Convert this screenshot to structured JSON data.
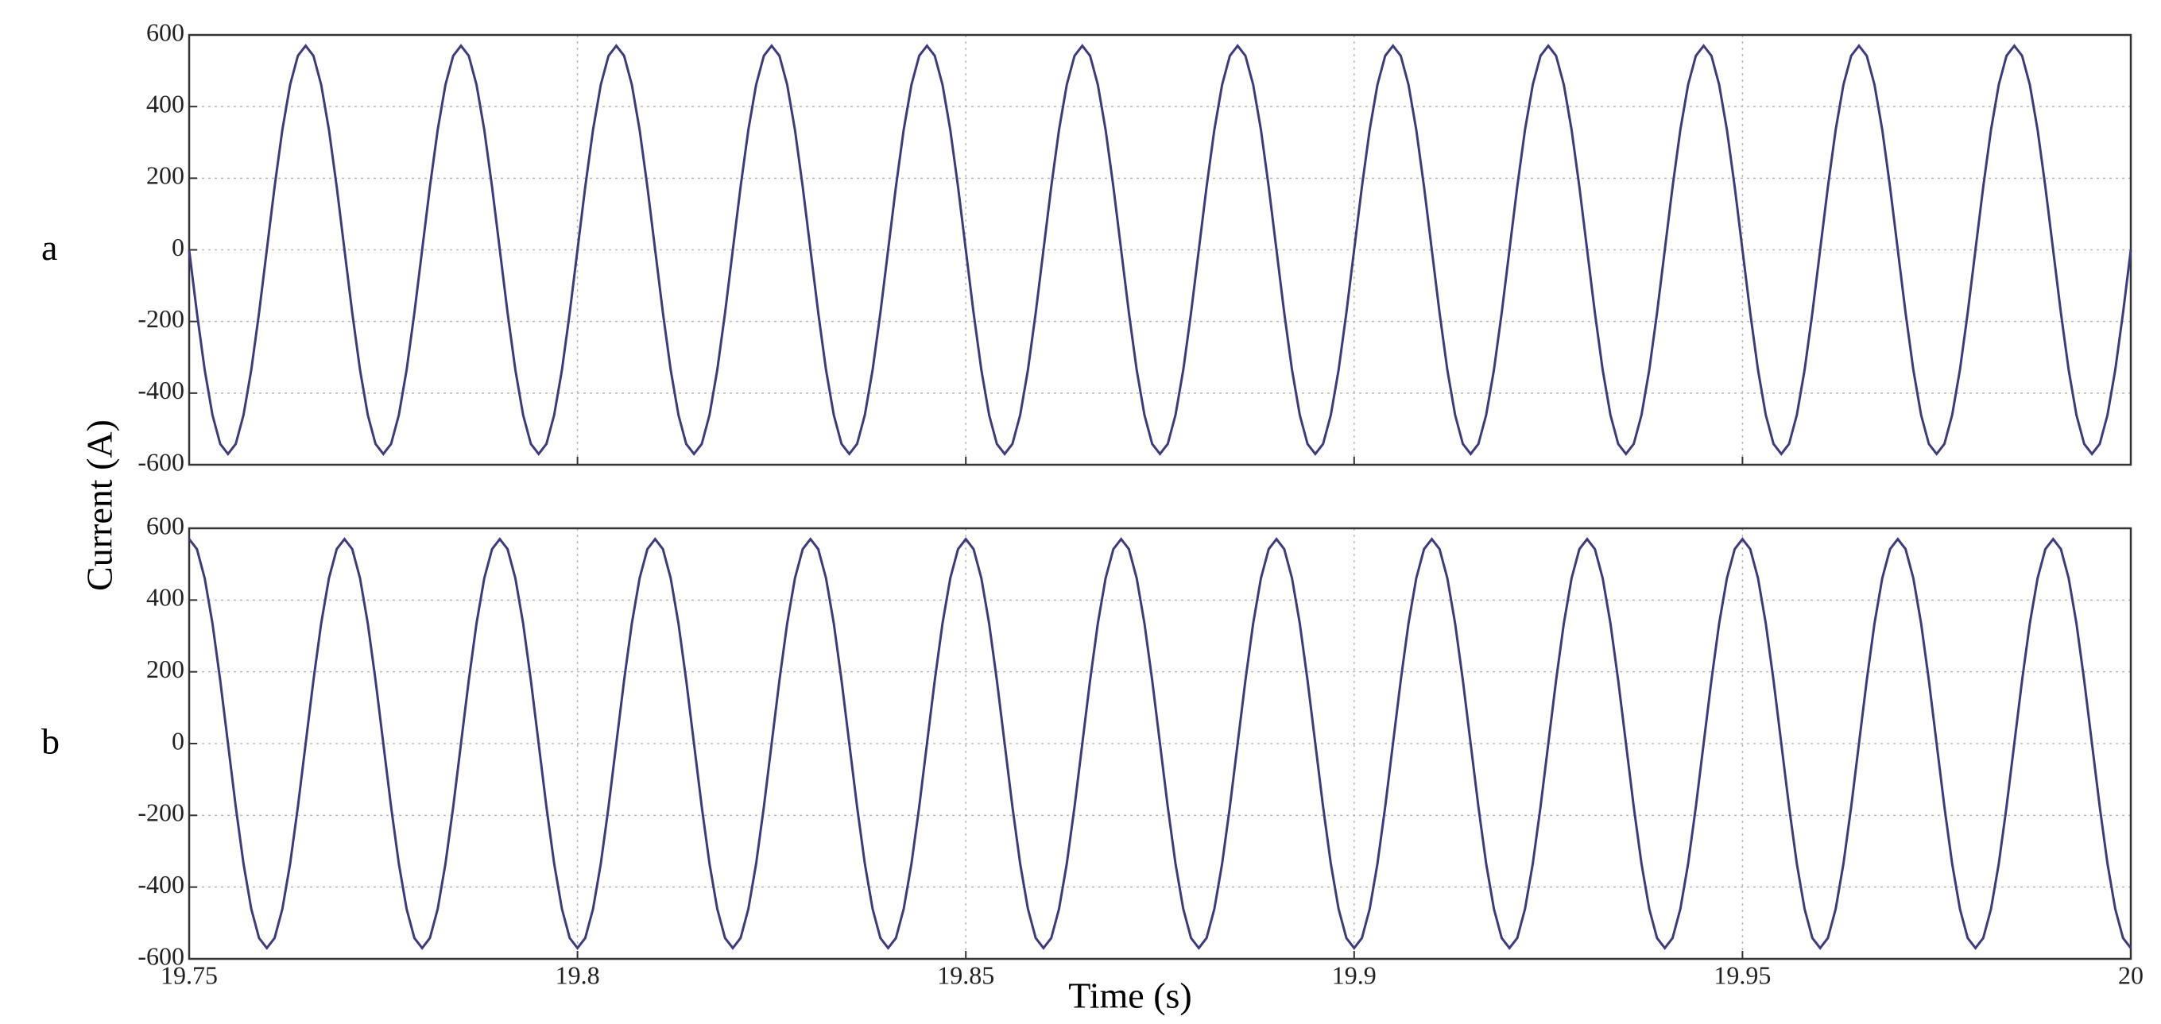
{
  "ylabel": "Current (A)",
  "xlabel": "Time (s)",
  "chart_data": [
    {
      "type": "line",
      "panel": "a",
      "color": "#3b3b7d",
      "grid": true,
      "xlim": [
        19.75,
        20
      ],
      "xticks": [
        19.75,
        19.8,
        19.85,
        19.9,
        19.95,
        20
      ],
      "ylim": [
        -600,
        600
      ],
      "yticks": [
        -600,
        -400,
        -200,
        0,
        200,
        400,
        600
      ],
      "x": [
        19.75,
        19.751,
        19.752,
        19.753,
        19.754,
        19.755,
        19.756,
        19.757,
        19.758,
        19.759,
        19.76,
        19.761,
        19.762,
        19.763,
        19.764,
        19.765,
        19.766,
        19.767,
        19.768,
        19.769,
        19.77,
        19.771,
        19.772,
        19.773,
        19.774,
        19.775,
        19.776,
        19.777,
        19.778,
        19.779,
        19.78,
        19.781,
        19.782,
        19.783,
        19.784,
        19.785,
        19.786,
        19.787,
        19.788,
        19.789,
        19.79,
        19.791,
        19.792,
        19.793,
        19.794,
        19.795,
        19.796,
        19.797,
        19.798,
        19.799,
        19.8,
        19.801,
        19.802,
        19.803,
        19.804,
        19.805,
        19.806,
        19.807,
        19.808,
        19.809,
        19.81,
        19.811,
        19.812,
        19.813,
        19.814,
        19.815,
        19.816,
        19.817,
        19.818,
        19.819,
        19.82,
        19.821,
        19.822,
        19.823,
        19.824,
        19.825,
        19.826,
        19.827,
        19.828,
        19.829,
        19.83,
        19.831,
        19.832,
        19.833,
        19.834,
        19.835,
        19.836,
        19.837,
        19.838,
        19.839,
        19.84,
        19.841,
        19.842,
        19.843,
        19.844,
        19.845,
        19.846,
        19.847,
        19.848,
        19.849,
        19.85,
        19.851,
        19.852,
        19.853,
        19.854,
        19.855,
        19.856,
        19.857,
        19.858,
        19.859,
        19.86,
        19.861,
        19.862,
        19.863,
        19.864,
        19.865,
        19.866,
        19.867,
        19.868,
        19.869,
        19.87,
        19.871,
        19.872,
        19.873,
        19.874,
        19.875,
        19.876,
        19.877,
        19.878,
        19.879,
        19.88,
        19.881,
        19.882,
        19.883,
        19.884,
        19.885,
        19.886,
        19.887,
        19.888,
        19.889,
        19.89,
        19.891,
        19.892,
        19.893,
        19.894,
        19.895,
        19.896,
        19.897,
        19.898,
        19.899,
        19.9,
        19.901,
        19.902,
        19.903,
        19.904,
        19.905,
        19.906,
        19.907,
        19.908,
        19.909,
        19.91,
        19.911,
        19.912,
        19.913,
        19.914,
        19.915,
        19.916,
        19.917,
        19.918,
        19.919,
        19.92,
        19.921,
        19.922,
        19.923,
        19.924,
        19.925,
        19.926,
        19.927,
        19.928,
        19.929,
        19.93,
        19.931,
        19.932,
        19.933,
        19.934,
        19.935,
        19.936,
        19.937,
        19.938,
        19.939,
        19.94,
        19.941,
        19.942,
        19.943,
        19.944,
        19.945,
        19.946,
        19.947,
        19.948,
        19.949,
        19.95,
        19.951,
        19.952,
        19.953,
        19.954,
        19.955,
        19.956,
        19.957,
        19.958,
        19.959,
        19.96,
        19.961,
        19.962,
        19.963,
        19.964,
        19.965,
        19.966,
        19.967,
        19.968,
        19.969,
        19.97,
        19.971,
        19.972,
        19.973,
        19.974,
        19.975,
        19.976,
        19.977,
        19.978,
        19.979,
        19.98,
        19.981,
        19.982,
        19.983,
        19.984,
        19.985,
        19.986,
        19.987,
        19.988,
        19.989,
        19.99,
        19.991,
        19.992,
        19.993,
        19.994,
        19.995,
        19.996,
        19.997,
        19.998,
        19.999,
        20
      ],
      "values": [
        0,
        -176,
        -335,
        -461,
        -542,
        -570,
        -542,
        -461,
        -335,
        -176,
        0,
        176,
        335,
        461,
        542,
        570,
        542,
        461,
        335,
        176,
        0,
        -176,
        -335,
        -461,
        -542,
        -570,
        -542,
        -461,
        -335,
        -176,
        0,
        176,
        335,
        461,
        542,
        570,
        542,
        461,
        335,
        176,
        0,
        -176,
        -335,
        -461,
        -542,
        -570,
        -542,
        -461,
        -335,
        -176,
        0,
        176,
        335,
        461,
        542,
        570,
        542,
        461,
        335,
        176,
        0,
        -176,
        -335,
        -461,
        -542,
        -570,
        -542,
        -461,
        -335,
        -176,
        0,
        176,
        335,
        461,
        542,
        570,
        542,
        461,
        335,
        176,
        0,
        -176,
        -335,
        -461,
        -542,
        -570,
        -542,
        -461,
        -335,
        -176,
        0,
        176,
        335,
        461,
        542,
        570,
        542,
        461,
        335,
        176,
        0,
        -176,
        -335,
        -461,
        -542,
        -570,
        -542,
        -461,
        -335,
        -176,
        0,
        176,
        335,
        461,
        542,
        570,
        542,
        461,
        335,
        176,
        0,
        -176,
        -335,
        -461,
        -542,
        -570,
        -542,
        -461,
        -335,
        -176,
        0,
        176,
        335,
        461,
        542,
        570,
        542,
        461,
        335,
        176,
        0,
        -176,
        -335,
        -461,
        -542,
        -570,
        -542,
        -461,
        -335,
        -176,
        0,
        176,
        335,
        461,
        542,
        570,
        542,
        461,
        335,
        176,
        0,
        -176,
        -335,
        -461,
        -542,
        -570,
        -542,
        -461,
        -335,
        -176,
        0,
        176,
        335,
        461,
        542,
        570,
        542,
        461,
        335,
        176,
        0,
        -176,
        -335,
        -461,
        -542,
        -570,
        -542,
        -461,
        -335,
        -176,
        0,
        176,
        335,
        461,
        542,
        570,
        542,
        461,
        335,
        176,
        0,
        -176,
        -335,
        -461,
        -542,
        -570,
        -542,
        -461,
        -335,
        -176,
        0,
        176,
        335,
        461,
        542,
        570,
        542,
        461,
        335,
        176,
        0,
        -176,
        -335,
        -461,
        -542,
        -570,
        -542,
        -461,
        -335,
        -176,
        0,
        176,
        335,
        461,
        542,
        570,
        542,
        461,
        335,
        176,
        0,
        -176,
        -335,
        -461,
        -542,
        -570,
        -542,
        -461,
        -335,
        -176,
        0
      ]
    },
    {
      "type": "line",
      "panel": "b",
      "color": "#3b3b7d",
      "grid": true,
      "xlim": [
        19.75,
        20
      ],
      "xticks": [
        19.75,
        19.8,
        19.85,
        19.9,
        19.95,
        20
      ],
      "ylim": [
        -600,
        600
      ],
      "yticks": [
        -600,
        -400,
        -200,
        0,
        200,
        400,
        600
      ],
      "x": [
        19.75,
        19.751,
        19.752,
        19.753,
        19.754,
        19.755,
        19.756,
        19.757,
        19.758,
        19.759,
        19.76,
        19.761,
        19.762,
        19.763,
        19.764,
        19.765,
        19.766,
        19.767,
        19.768,
        19.769,
        19.77,
        19.771,
        19.772,
        19.773,
        19.774,
        19.775,
        19.776,
        19.777,
        19.778,
        19.779,
        19.78,
        19.781,
        19.782,
        19.783,
        19.784,
        19.785,
        19.786,
        19.787,
        19.788,
        19.789,
        19.79,
        19.791,
        19.792,
        19.793,
        19.794,
        19.795,
        19.796,
        19.797,
        19.798,
        19.799,
        19.8,
        19.801,
        19.802,
        19.803,
        19.804,
        19.805,
        19.806,
        19.807,
        19.808,
        19.809,
        19.81,
        19.811,
        19.812,
        19.813,
        19.814,
        19.815,
        19.816,
        19.817,
        19.818,
        19.819,
        19.82,
        19.821,
        19.822,
        19.823,
        19.824,
        19.825,
        19.826,
        19.827,
        19.828,
        19.829,
        19.83,
        19.831,
        19.832,
        19.833,
        19.834,
        19.835,
        19.836,
        19.837,
        19.838,
        19.839,
        19.84,
        19.841,
        19.842,
        19.843,
        19.844,
        19.845,
        19.846,
        19.847,
        19.848,
        19.849,
        19.85,
        19.851,
        19.852,
        19.853,
        19.854,
        19.855,
        19.856,
        19.857,
        19.858,
        19.859,
        19.86,
        19.861,
        19.862,
        19.863,
        19.864,
        19.865,
        19.866,
        19.867,
        19.868,
        19.869,
        19.87,
        19.871,
        19.872,
        19.873,
        19.874,
        19.875,
        19.876,
        19.877,
        19.878,
        19.879,
        19.88,
        19.881,
        19.882,
        19.883,
        19.884,
        19.885,
        19.886,
        19.887,
        19.888,
        19.889,
        19.89,
        19.891,
        19.892,
        19.893,
        19.894,
        19.895,
        19.896,
        19.897,
        19.898,
        19.899,
        19.9,
        19.901,
        19.902,
        19.903,
        19.904,
        19.905,
        19.906,
        19.907,
        19.908,
        19.909,
        19.91,
        19.911,
        19.912,
        19.913,
        19.914,
        19.915,
        19.916,
        19.917,
        19.918,
        19.919,
        19.92,
        19.921,
        19.922,
        19.923,
        19.924,
        19.925,
        19.926,
        19.927,
        19.928,
        19.929,
        19.93,
        19.931,
        19.932,
        19.933,
        19.934,
        19.935,
        19.936,
        19.937,
        19.938,
        19.939,
        19.94,
        19.941,
        19.942,
        19.943,
        19.944,
        19.945,
        19.946,
        19.947,
        19.948,
        19.949,
        19.95,
        19.951,
        19.952,
        19.953,
        19.954,
        19.955,
        19.956,
        19.957,
        19.958,
        19.959,
        19.96,
        19.961,
        19.962,
        19.963,
        19.964,
        19.965,
        19.966,
        19.967,
        19.968,
        19.969,
        19.97,
        19.971,
        19.972,
        19.973,
        19.974,
        19.975,
        19.976,
        19.977,
        19.978,
        19.979,
        19.98,
        19.981,
        19.982,
        19.983,
        19.984,
        19.985,
        19.986,
        19.987,
        19.988,
        19.989,
        19.99,
        19.991,
        19.992,
        19.993,
        19.994,
        19.995,
        19.996,
        19.997,
        19.998,
        19.999,
        20
      ],
      "values": [
        570,
        542,
        461,
        335,
        176,
        0,
        -176,
        -335,
        -461,
        -542,
        -570,
        -542,
        -461,
        -335,
        -176,
        0,
        176,
        335,
        461,
        542,
        570,
        542,
        461,
        335,
        176,
        0,
        -176,
        -335,
        -461,
        -542,
        -570,
        -542,
        -461,
        -335,
        -176,
        0,
        176,
        335,
        461,
        542,
        570,
        542,
        461,
        335,
        176,
        0,
        -176,
        -335,
        -461,
        -542,
        -570,
        -542,
        -461,
        -335,
        -176,
        0,
        176,
        335,
        461,
        542,
        570,
        542,
        461,
        335,
        176,
        0,
        -176,
        -335,
        -461,
        -542,
        -570,
        -542,
        -461,
        -335,
        -176,
        0,
        176,
        335,
        461,
        542,
        570,
        542,
        461,
        335,
        176,
        0,
        -176,
        -335,
        -461,
        -542,
        -570,
        -542,
        -461,
        -335,
        -176,
        0,
        176,
        335,
        461,
        542,
        570,
        542,
        461,
        335,
        176,
        0,
        -176,
        -335,
        -461,
        -542,
        -570,
        -542,
        -461,
        -335,
        -176,
        0,
        176,
        335,
        461,
        542,
        570,
        542,
        461,
        335,
        176,
        0,
        -176,
        -335,
        -461,
        -542,
        -570,
        -542,
        -461,
        -335,
        -176,
        0,
        176,
        335,
        461,
        542,
        570,
        542,
        461,
        335,
        176,
        0,
        -176,
        -335,
        -461,
        -542,
        -570,
        -542,
        -461,
        -335,
        -176,
        0,
        176,
        335,
        461,
        542,
        570,
        542,
        461,
        335,
        176,
        0,
        -176,
        -335,
        -461,
        -542,
        -570,
        -542,
        -461,
        -335,
        -176,
        0,
        176,
        335,
        461,
        542,
        570,
        542,
        461,
        335,
        176,
        0,
        -176,
        -335,
        -461,
        -542,
        -570,
        -542,
        -461,
        -335,
        -176,
        0,
        176,
        335,
        461,
        542,
        570,
        542,
        461,
        335,
        176,
        0,
        -176,
        -335,
        -461,
        -542,
        -570,
        -542,
        -461,
        -335,
        -176,
        0,
        176,
        335,
        461,
        542,
        570,
        542,
        461,
        335,
        176,
        0,
        -176,
        -335,
        -461,
        -542,
        -570,
        -542,
        -461,
        -335,
        -176,
        0,
        176,
        335,
        461,
        542,
        570,
        542,
        461,
        335,
        176,
        0,
        -176,
        -335,
        -461,
        -542,
        -570
      ]
    }
  ]
}
